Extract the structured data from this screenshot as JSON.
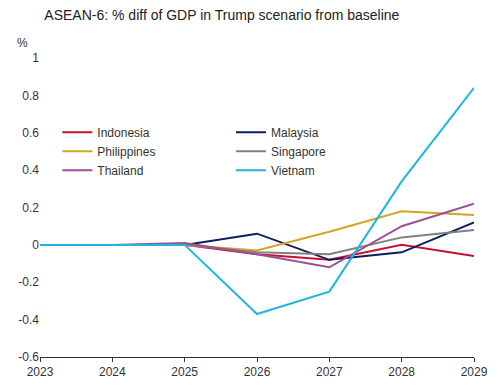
{
  "chart_data": {
    "type": "line",
    "title": "ASEAN-6: % diff of GDP in Trump scenario from baseline",
    "ylabel": "%",
    "x": [
      2023,
      2024,
      2025,
      2026,
      2027,
      2028,
      2029
    ],
    "xlim": [
      2023,
      2029
    ],
    "xticks": [
      2023,
      2024,
      2025,
      2026,
      2027,
      2028,
      2029
    ],
    "ylim": [
      -0.6,
      1
    ],
    "yticks": [
      -0.6,
      -0.4,
      -0.2,
      0,
      0.2,
      0.4,
      0.6,
      0.8,
      1
    ],
    "grid": false,
    "legend": "upper left",
    "series": [
      {
        "name": "Indonesia",
        "color": "#c8102e",
        "values": [
          0,
          0,
          0,
          -0.05,
          -0.08,
          0.0,
          -0.06
        ]
      },
      {
        "name": "Malaysia",
        "color": "#0b1f5c",
        "values": [
          0,
          0,
          0,
          0.06,
          -0.08,
          -0.04,
          0.12
        ]
      },
      {
        "name": "Philippines",
        "color": "#d4a520",
        "values": [
          0,
          0,
          0,
          -0.03,
          0.07,
          0.18,
          0.16
        ]
      },
      {
        "name": "Singapore",
        "color": "#808080",
        "values": [
          0,
          0,
          0,
          -0.04,
          -0.05,
          0.04,
          0.08
        ]
      },
      {
        "name": "Thailand",
        "color": "#9b4f96",
        "values": [
          0,
          0,
          0.01,
          -0.05,
          -0.12,
          0.1,
          0.22
        ]
      },
      {
        "name": "Vietnam",
        "color": "#1fb5e0",
        "values": [
          0,
          0,
          0,
          -0.37,
          -0.25,
          0.34,
          0.84
        ]
      }
    ]
  }
}
